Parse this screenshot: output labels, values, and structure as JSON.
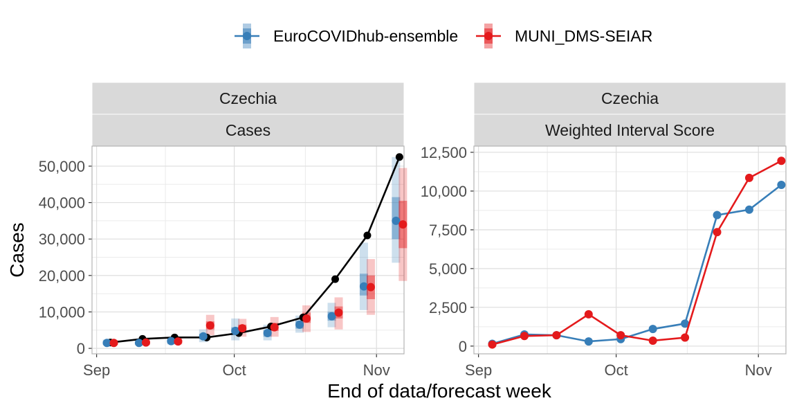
{
  "legend": {
    "placement": "top",
    "entries": [
      {
        "name": "EuroCOVIDhub-ensemble",
        "color": "#377EB8"
      },
      {
        "name": "MUNI_DMS-SEIAR",
        "color": "#E41A1C"
      }
    ]
  },
  "axis_titles": {
    "y": "Cases",
    "x": "End of data/forecast week"
  },
  "chart_data": [
    {
      "type": "line",
      "strip_top": "Czechia",
      "strip_bottom": "Cases",
      "grid": true,
      "xticks": [
        "Sep",
        "Oct",
        "Nov"
      ],
      "xtick_dates": [
        "2021-09-01",
        "2021-10-01",
        "2021-11-01"
      ],
      "xlim": [
        "2021-08-31",
        "2021-11-07"
      ],
      "ylim": [
        -1500,
        55500
      ],
      "yticks": [
        0,
        10000,
        20000,
        30000,
        40000,
        50000
      ],
      "ytick_labels": [
        "0",
        "10,000",
        "20,000",
        "30,000",
        "40,000",
        "50,000"
      ],
      "observed": {
        "color": "#000000",
        "x": [
          "2021-09-04",
          "2021-09-11",
          "2021-09-18",
          "2021-09-25",
          "2021-10-02",
          "2021-10-09",
          "2021-10-16",
          "2021-10-23",
          "2021-10-30",
          "2021-11-06"
        ],
        "values": [
          1600,
          2600,
          3000,
          3000,
          4200,
          6000,
          8500,
          19000,
          31000,
          52500
        ]
      },
      "forecasts": [
        {
          "model": "EuroCOVIDhub-ensemble",
          "color": "#377EB8",
          "x": [
            "2021-09-04",
            "2021-09-11",
            "2021-09-18",
            "2021-09-25",
            "2021-10-02",
            "2021-10-09",
            "2021-10-16",
            "2021-10-23",
            "2021-10-30",
            "2021-11-06"
          ],
          "median": [
            1500,
            1500,
            2000,
            3300,
            4800,
            4200,
            6500,
            8800,
            17000,
            35000
          ],
          "lower50": [
            1200,
            1200,
            1600,
            2500,
            3600,
            3200,
            5400,
            7600,
            14500,
            30000
          ],
          "upper50": [
            1900,
            1900,
            2500,
            4000,
            5800,
            5000,
            7600,
            10000,
            20500,
            41500
          ],
          "lower90": [
            900,
            900,
            1100,
            1700,
            2200,
            2200,
            4300,
            5800,
            10500,
            23500
          ],
          "upper90": [
            2400,
            2400,
            3100,
            5200,
            8200,
            6500,
            9000,
            12500,
            29000,
            52500
          ]
        },
        {
          "model": "MUNI_DMS-SEIAR",
          "color": "#E41A1C",
          "x": [
            "2021-09-04",
            "2021-09-11",
            "2021-09-18",
            "2021-09-25",
            "2021-10-02",
            "2021-10-09",
            "2021-10-16",
            "2021-10-23",
            "2021-10-30",
            "2021-11-06"
          ],
          "median": [
            1500,
            1600,
            1900,
            6300,
            5500,
            5800,
            8200,
            9800,
            16800,
            34000
          ],
          "lower50": [
            1300,
            1400,
            1600,
            5200,
            4700,
            4800,
            7000,
            8200,
            13500,
            27500
          ],
          "upper50": [
            1800,
            1900,
            2300,
            7400,
            6500,
            7000,
            9800,
            11500,
            20000,
            40500
          ],
          "lower90": [
            900,
            900,
            1100,
            3600,
            3200,
            3200,
            4500,
            5200,
            9200,
            18500
          ],
          "upper90": [
            2300,
            2400,
            2800,
            9200,
            8100,
            8600,
            11800,
            14000,
            24500,
            49500
          ]
        }
      ]
    },
    {
      "type": "line",
      "strip_top": "Czechia",
      "strip_bottom": "Weighted Interval Score",
      "grid": true,
      "xticks": [
        "Sep",
        "Oct",
        "Nov"
      ],
      "xtick_dates": [
        "2021-09-01",
        "2021-10-01",
        "2021-11-01"
      ],
      "xlim": [
        "2021-08-31",
        "2021-11-07"
      ],
      "ylim": [
        -500,
        12900
      ],
      "yticks": [
        0,
        2500,
        5000,
        7500,
        10000,
        12500
      ],
      "ytick_labels": [
        "0",
        "2,500",
        "5,000",
        "7,500",
        "10,000",
        "12,500"
      ],
      "series": [
        {
          "name": "EuroCOVIDhub-ensemble",
          "color": "#377EB8",
          "x": [
            "2021-09-04",
            "2021-09-11",
            "2021-09-18",
            "2021-09-25",
            "2021-10-02",
            "2021-10-09",
            "2021-10-16",
            "2021-10-23",
            "2021-10-30",
            "2021-11-06"
          ],
          "values": [
            150,
            750,
            700,
            300,
            450,
            1100,
            1450,
            8450,
            8800,
            10400
          ]
        },
        {
          "name": "MUNI_DMS-SEIAR",
          "color": "#E41A1C",
          "x": [
            "2021-09-04",
            "2021-09-11",
            "2021-09-18",
            "2021-09-25",
            "2021-10-02",
            "2021-10-09",
            "2021-10-16",
            "2021-10-23",
            "2021-10-30",
            "2021-11-06"
          ],
          "values": [
            100,
            650,
            700,
            2050,
            700,
            350,
            550,
            7350,
            10850,
            11950
          ]
        }
      ]
    }
  ]
}
